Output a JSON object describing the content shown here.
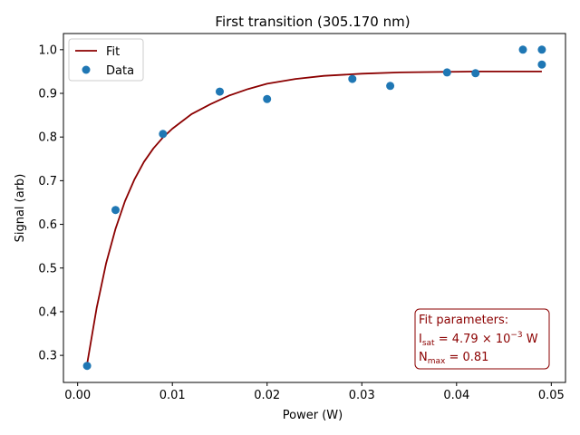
{
  "chart_data": {
    "type": "scatter",
    "title": "First transition (305.170 nm)",
    "xlabel": "Power (W)",
    "ylabel": "Signal (arb)",
    "xlim": [
      -0.0015,
      0.0515
    ],
    "ylim": [
      0.238,
      1.037
    ],
    "x_ticks": [
      0.0,
      0.01,
      0.02,
      0.03,
      0.04,
      0.05
    ],
    "x_tick_labels": [
      "0.00",
      "0.01",
      "0.02",
      "0.03",
      "0.04",
      "0.05"
    ],
    "y_ticks": [
      0.3,
      0.4,
      0.5,
      0.6,
      0.7,
      0.8,
      0.9,
      1.0
    ],
    "y_tick_labels": [
      "0.3",
      "0.4",
      "0.5",
      "0.6",
      "0.7",
      "0.8",
      "0.9",
      "1.0"
    ],
    "grid": false,
    "legend": {
      "position": "top-left",
      "entries": [
        "Fit",
        "Data"
      ]
    },
    "series": [
      {
        "name": "Fit",
        "kind": "line",
        "color": "#8b0000",
        "x": [
          0.001,
          0.002,
          0.003,
          0.004,
          0.005,
          0.006,
          0.007,
          0.008,
          0.009,
          0.01,
          0.012,
          0.014,
          0.016,
          0.018,
          0.02,
          0.023,
          0.026,
          0.03,
          0.034,
          0.038,
          0.042,
          0.046,
          0.049
        ],
        "y": [
          0.28,
          0.408,
          0.51,
          0.59,
          0.653,
          0.703,
          0.743,
          0.774,
          0.799,
          0.819,
          0.852,
          0.875,
          0.895,
          0.91,
          0.922,
          0.933,
          0.94,
          0.945,
          0.948,
          0.949,
          0.95,
          0.95,
          0.95
        ]
      },
      {
        "name": "Data",
        "kind": "scatter",
        "color": "#1f77b4",
        "x": [
          0.001,
          0.004,
          0.009,
          0.015,
          0.02,
          0.029,
          0.033,
          0.039,
          0.042,
          0.047,
          0.049,
          0.049
        ],
        "y": [
          0.276,
          0.633,
          0.807,
          0.904,
          0.887,
          0.933,
          0.917,
          0.948,
          0.946,
          1.0,
          1.0,
          0.966
        ]
      }
    ],
    "annotation": {
      "heading": "Fit parameters:",
      "isat_symbol": "I",
      "isat_sub": "sat",
      "isat_prefix": " = 4.79 × 10",
      "isat_exp": "−3",
      "isat_unit": " W",
      "nmax_symbol": "N",
      "nmax_sub": "max",
      "nmax_value": " = 0.81",
      "position": "bottom-right",
      "color": "#8b0000"
    }
  }
}
